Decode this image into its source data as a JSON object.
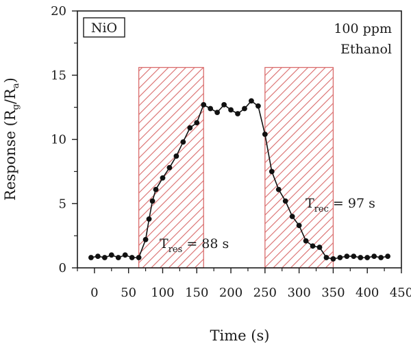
{
  "chart_data": {
    "type": "scatter",
    "title": "",
    "xlabel": "Time (s)",
    "ylabel": {
      "base": "Response (R",
      "sub1": "g",
      "mid": "/R",
      "sub2": "a",
      "end": ")"
    },
    "xlim": [
      -25,
      450
    ],
    "ylim": [
      0,
      20
    ],
    "xticks": [
      0,
      50,
      100,
      150,
      200,
      250,
      300,
      350,
      400,
      450
    ],
    "yticks": [
      0,
      5,
      10,
      15,
      20
    ],
    "grid": false,
    "legend": "none",
    "series": [
      {
        "x": [
          -5,
          5,
          15,
          25,
          35,
          45,
          55,
          65,
          75,
          80,
          85,
          90,
          100,
          110,
          120,
          130,
          140,
          150,
          160,
          170,
          180,
          190,
          200,
          210,
          220,
          230,
          240,
          250,
          260,
          270,
          280,
          290,
          300,
          310,
          320,
          330,
          340,
          350,
          360,
          370,
          380,
          390,
          400,
          410,
          420,
          430
        ],
        "values": [
          0.8,
          0.9,
          0.8,
          1.0,
          0.8,
          1.0,
          0.8,
          0.8,
          2.2,
          3.8,
          5.2,
          6.1,
          7.0,
          7.8,
          8.7,
          9.8,
          10.9,
          11.3,
          12.7,
          12.4,
          12.1,
          12.7,
          12.3,
          12.0,
          12.4,
          13.0,
          12.6,
          10.4,
          7.5,
          6.1,
          5.2,
          4.0,
          3.3,
          2.1,
          1.7,
          1.6,
          0.8,
          0.7,
          0.8,
          0.9,
          0.9,
          0.8,
          0.8,
          0.9,
          0.8,
          0.9
        ],
        "color": "#111111"
      }
    ],
    "shaded_regions": [
      {
        "x": [
          65,
          160
        ],
        "y": [
          0,
          15.6
        ],
        "stroke": "#d96b6b"
      },
      {
        "x": [
          250,
          350
        ],
        "y": [
          0,
          15.6
        ],
        "stroke": "#d96b6b"
      }
    ],
    "annotations": {
      "material": "NiO",
      "gas_conc": "100 ppm",
      "gas_name": "Ethanol",
      "t_res": {
        "base": "T",
        "sub": "res",
        "value": " = 88 s"
      },
      "t_rec": {
        "base": "T",
        "sub": "rec",
        "value": " = 97 s"
      }
    }
  }
}
